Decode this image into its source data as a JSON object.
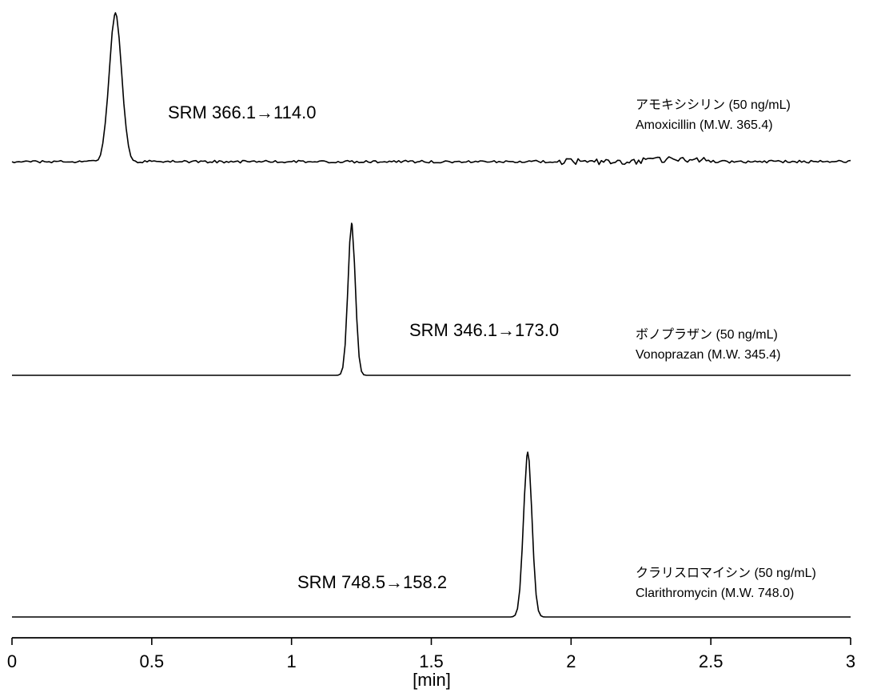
{
  "chart_data": {
    "type": "line",
    "x_unit_label": "[min]",
    "xlim": [
      0,
      3
    ],
    "x_ticks": [
      {
        "value": 0,
        "label": "0"
      },
      {
        "value": 0.5,
        "label": "0.5"
      },
      {
        "value": 1,
        "label": "1"
      },
      {
        "value": 1.5,
        "label": "1.5"
      },
      {
        "value": 2,
        "label": "2"
      },
      {
        "value": 2.5,
        "label": "2.5"
      },
      {
        "value": 3,
        "label": "3"
      }
    ],
    "traces": [
      {
        "srm": "SRM 366.1→114.0",
        "name_ja": "アモキシシリン (50 ng/mL)",
        "name_en": "Amoxicillin (M.W. 365.4)",
        "peak_time": 0.37,
        "peak_width": 0.022,
        "relative_peak_height": 1.0,
        "noisy": true
      },
      {
        "srm": "SRM 346.1→173.0",
        "name_ja": "ボノプラザン (50 ng/mL)",
        "name_en": "Vonoprazan (M.W. 345.4)",
        "peak_time": 1.215,
        "peak_width": 0.013,
        "relative_peak_height": 1.0,
        "noisy": false
      },
      {
        "srm": "SRM 748.5→158.2",
        "name_ja": "クラリスロマイシン (50 ng/mL)",
        "name_en": "Clarithromycin (M.W. 748.0)",
        "peak_time": 1.845,
        "peak_width": 0.015,
        "relative_peak_height": 1.0,
        "noisy": false
      }
    ]
  }
}
